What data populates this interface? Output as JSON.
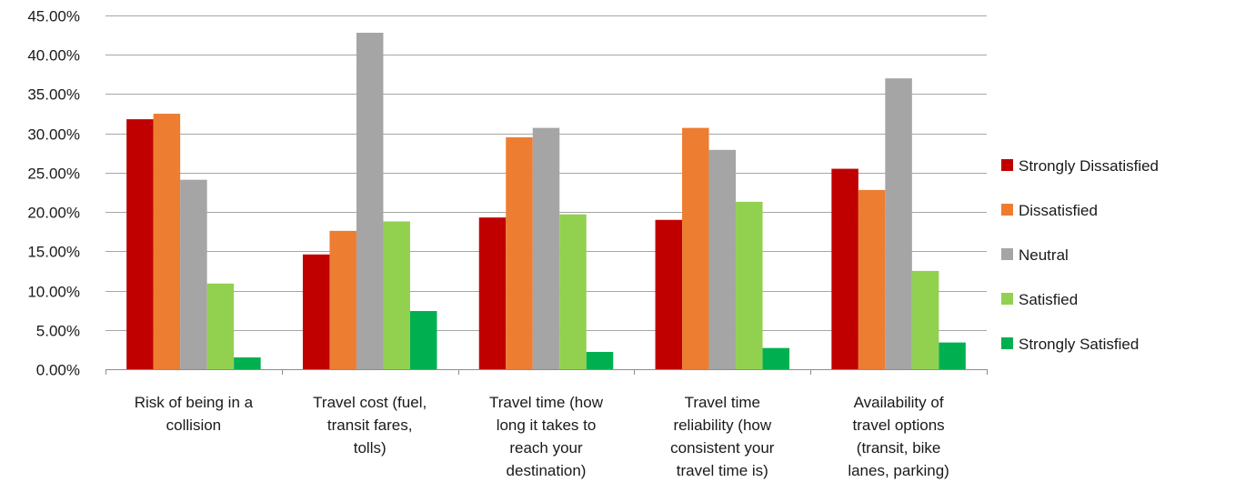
{
  "chart_data": {
    "type": "bar",
    "title": "",
    "xlabel": "",
    "ylabel": "",
    "ylim": [
      0,
      0.45
    ],
    "y_tick_step": 0.05,
    "y_tick_format": "percent_2dp",
    "grid": "horizontal",
    "legend_position": "right",
    "categories": [
      [
        "Risk of being in a",
        "collision"
      ],
      [
        "Travel cost (fuel,",
        "transit fares,",
        "tolls)"
      ],
      [
        "Travel time (how",
        "long it takes to",
        "reach your",
        "destination)"
      ],
      [
        "Travel time",
        "reliability (how",
        "consistent your",
        "travel time is)"
      ],
      [
        "Availability of",
        "travel options",
        "(transit, bike",
        "lanes, parking)"
      ]
    ],
    "series": [
      {
        "name": "Strongly Dissatisfied",
        "color": "#c00000",
        "values": [
          0.318,
          0.146,
          0.193,
          0.19,
          0.255
        ]
      },
      {
        "name": "Dissatisfied",
        "color": "#ed7d31",
        "values": [
          0.325,
          0.176,
          0.295,
          0.307,
          0.228
        ]
      },
      {
        "name": "Neutral",
        "color": "#a5a5a5",
        "values": [
          0.241,
          0.428,
          0.307,
          0.279,
          0.37
        ]
      },
      {
        "name": "Satisfied",
        "color": "#92d050",
        "values": [
          0.109,
          0.188,
          0.197,
          0.213,
          0.125
        ]
      },
      {
        "name": "Strongly Satisfied",
        "color": "#00b050",
        "values": [
          0.015,
          0.074,
          0.022,
          0.027,
          0.034
        ]
      }
    ]
  }
}
